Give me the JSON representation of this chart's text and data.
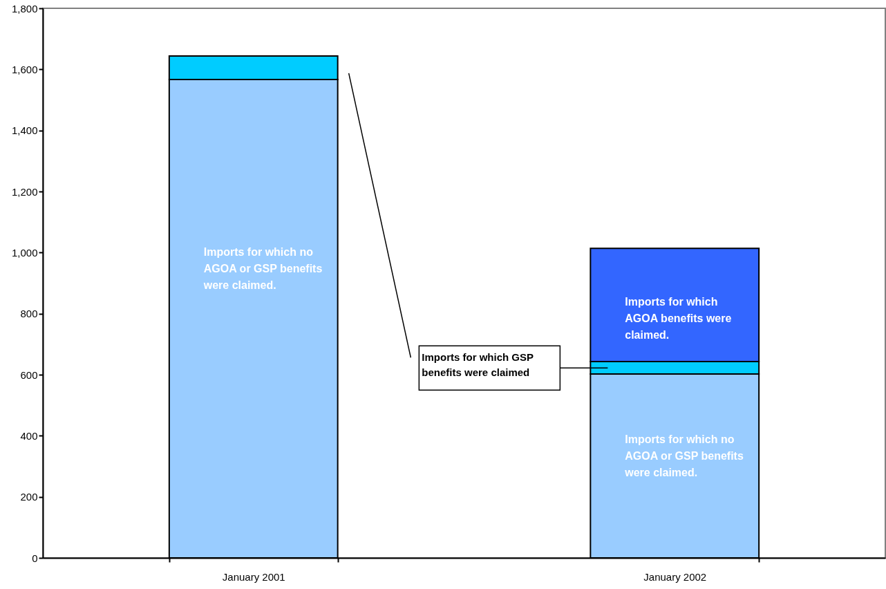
{
  "chart_data": {
    "type": "bar",
    "stacked": true,
    "categories": [
      "January 2001",
      "January 2002"
    ],
    "series": [
      {
        "color": "#99ccff",
        "values": [
          1567,
          602
        ]
      },
      {
        "color": "#00ccff",
        "values": [
          77,
          41
        ]
      },
      {
        "color": "#3366ff",
        "values": [
          null,
          371
        ]
      }
    ],
    "ylim": [
      0,
      1800
    ],
    "yticks": [
      0,
      200,
      400,
      600,
      800,
      {
        "value": 1000,
        "label": "1,000"
      },
      {
        "value": 1200,
        "label": "1,200"
      },
      {
        "value": 1400,
        "label": "1,400"
      },
      {
        "value": 1600,
        "label": "1,600"
      },
      {
        "value": 1800,
        "label": "1,800"
      }
    ],
    "grid": false,
    "annotations": [
      "Imports for which no AGOA or GSP benefits were claimed.",
      "Imports for which AGOA benefits were claimed.",
      "Imports for which no AGOA or GSP benefits were claimed.",
      "Imports for which GSP benefits were claimed"
    ]
  }
}
